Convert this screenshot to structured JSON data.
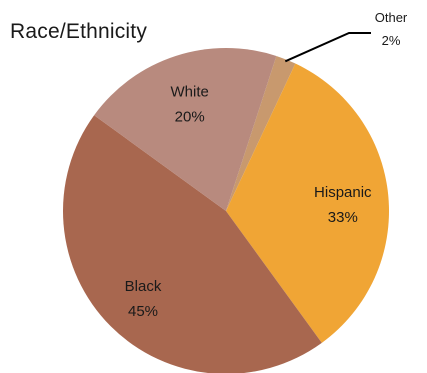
{
  "chart_data": {
    "type": "pie",
    "title": "Race/Ethnicity",
    "slices": [
      {
        "name": "Other",
        "value": 2,
        "label": "2%",
        "color": "#c8996e"
      },
      {
        "name": "Hispanic",
        "value": 33,
        "label": "33%",
        "color": "#f0a535"
      },
      {
        "name": "Black",
        "value": 45,
        "label": "45%",
        "color": "#a8674f"
      },
      {
        "name": "White",
        "value": 20,
        "label": "20%",
        "color": "#b88a7e"
      }
    ],
    "start_angle_deg": 18,
    "direction": "clockwise"
  }
}
